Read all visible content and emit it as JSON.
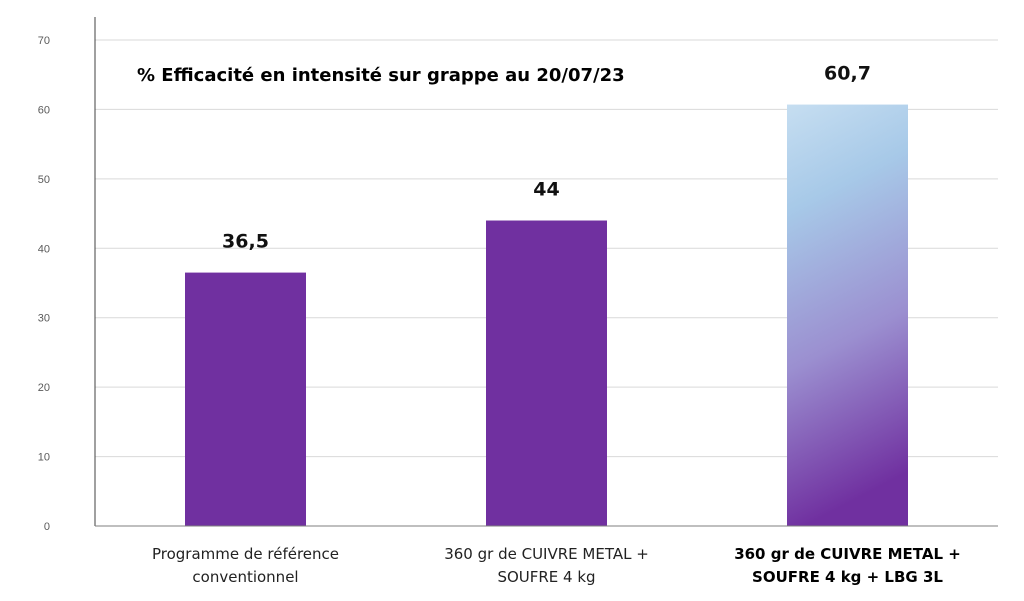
{
  "chart_data": {
    "type": "bar",
    "title": "% Efficacité en intensité sur grappe au 20/07/23",
    "xlabel": "",
    "ylabel": "",
    "ylim": [
      0,
      70
    ],
    "yticks": [
      0,
      10,
      20,
      30,
      40,
      50,
      60,
      70
    ],
    "grid": true,
    "categories": [
      "Programme de référence conventionnel",
      "360 gr de CUIVRE METAL + SOUFRE 4 kg",
      "360 gr de CUIVRE METAL + SOUFRE 4 kg + LBG 3L"
    ],
    "category_lines": [
      [
        "Programme de référence",
        "conventionnel"
      ],
      [
        "360 gr de CUIVRE METAL +",
        "SOUFRE 4 kg"
      ],
      [
        "360 gr de CUIVRE METAL +",
        "SOUFRE 4 kg + LBG 3L"
      ]
    ],
    "values": [
      36.5,
      44,
      60.7
    ],
    "data_labels": [
      "36,5",
      "44",
      "60,7"
    ],
    "highlighted_category": 2,
    "colors": {
      "bar": "#7030a0",
      "highlight_gradient": [
        "#c6def1",
        "#a7c9e8",
        "#9b8fd0",
        "#7030a0"
      ],
      "grid": "#d9d9d9",
      "axis": "#7f7f7f"
    }
  }
}
